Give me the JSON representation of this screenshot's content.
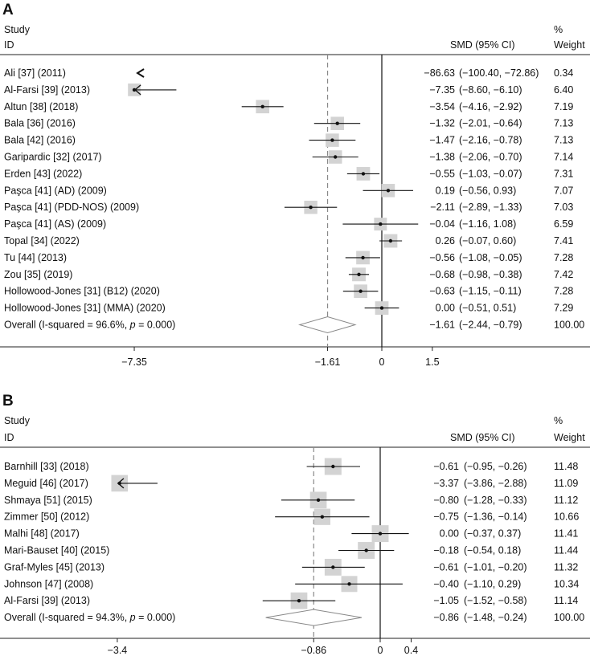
{
  "chart_data": [
    {
      "type": "forest",
      "panel": "A",
      "header": {
        "study": "Study",
        "id": "ID",
        "smd": "SMD (95% CI)",
        "pct": "%",
        "weight": "Weight"
      },
      "xticks": [
        {
          "v": -7.35,
          "label": "−7.35"
        },
        {
          "v": -1.61,
          "label": "−1.61"
        },
        {
          "v": 0,
          "label": "0"
        },
        {
          "v": 1.5,
          "label": "1.5"
        }
      ],
      "xlim": [
        -7.35,
        1.5
      ],
      "pooled": -1.61,
      "rows": [
        {
          "id": "Ali [37] (2011)",
          "est": -86.63,
          "lo": -100.4,
          "hi": -72.86,
          "weight": 0.34,
          "est_txt": "−86.63",
          "ci_txt": "(−100.40, −72.86)",
          "w_txt": "0.34"
        },
        {
          "id": "Al-Farsi [39] (2013)",
          "est": -7.35,
          "lo": -8.6,
          "hi": -6.1,
          "weight": 6.4,
          "est_txt": "−7.35",
          "ci_txt": "(−8.60, −6.10)",
          "w_txt": "6.40"
        },
        {
          "id": "Altun [38] (2018)",
          "est": -3.54,
          "lo": -4.16,
          "hi": -2.92,
          "weight": 7.19,
          "est_txt": "−3.54",
          "ci_txt": "(−4.16, −2.92)",
          "w_txt": "7.19"
        },
        {
          "id": "Bala [36] (2016)",
          "est": -1.32,
          "lo": -2.01,
          "hi": -0.64,
          "weight": 7.13,
          "est_txt": "−1.32",
          "ci_txt": "(−2.01, −0.64)",
          "w_txt": "7.13"
        },
        {
          "id": "Bala [42] (2016)",
          "est": -1.47,
          "lo": -2.16,
          "hi": -0.78,
          "weight": 7.13,
          "est_txt": "−1.47",
          "ci_txt": "(−2.16, −0.78)",
          "w_txt": "7.13"
        },
        {
          "id": "Garipardic [32] (2017)",
          "est": -1.38,
          "lo": -2.06,
          "hi": -0.7,
          "weight": 7.14,
          "est_txt": "−1.38",
          "ci_txt": "(−2.06, −0.70)",
          "w_txt": "7.14"
        },
        {
          "id": "Erden [43] (2022)",
          "est": -0.55,
          "lo": -1.03,
          "hi": -0.07,
          "weight": 7.31,
          "est_txt": "−0.55",
          "ci_txt": "(−1.03, −0.07)",
          "w_txt": "7.31"
        },
        {
          "id": "Paşca [41] (AD) (2009)",
          "est": 0.19,
          "lo": -0.56,
          "hi": 0.93,
          "weight": 7.07,
          "est_txt": "0.19",
          "ci_txt": "(−0.56, 0.93)",
          "w_txt": "7.07"
        },
        {
          "id": "Paşca [41] (PDD-NOS) (2009)",
          "est": -2.11,
          "lo": -2.89,
          "hi": -1.33,
          "weight": 7.03,
          "est_txt": "−2.11",
          "ci_txt": "(−2.89, −1.33)",
          "w_txt": "7.03"
        },
        {
          "id": "Paşca [41] (AS) (2009)",
          "est": -0.04,
          "lo": -1.16,
          "hi": 1.08,
          "weight": 6.59,
          "est_txt": "−0.04",
          "ci_txt": "(−1.16, 1.08)",
          "w_txt": "6.59"
        },
        {
          "id": "Topal [34] (2022)",
          "est": 0.26,
          "lo": -0.07,
          "hi": 0.6,
          "weight": 7.41,
          "est_txt": "0.26",
          "ci_txt": "(−0.07, 0.60)",
          "w_txt": "7.41"
        },
        {
          "id": "Tu [44] (2013)",
          "est": -0.56,
          "lo": -1.08,
          "hi": -0.05,
          "weight": 7.28,
          "est_txt": "−0.56",
          "ci_txt": "(−1.08, −0.05)",
          "w_txt": "7.28"
        },
        {
          "id": "Zou [35] (2019)",
          "est": -0.68,
          "lo": -0.98,
          "hi": -0.38,
          "weight": 7.42,
          "est_txt": "−0.68",
          "ci_txt": "(−0.98, −0.38)",
          "w_txt": "7.42"
        },
        {
          "id": "Hollowood-Jones [31] (B12) (2020)",
          "est": -0.63,
          "lo": -1.15,
          "hi": -0.11,
          "weight": 7.28,
          "est_txt": "−0.63",
          "ci_txt": "(−1.15, −0.11)",
          "w_txt": "7.28"
        },
        {
          "id": "Hollowood-Jones [31] (MMA) (2020)",
          "est": 0.0,
          "lo": -0.51,
          "hi": 0.51,
          "weight": 7.29,
          "est_txt": "0.00",
          "ci_txt": "(−0.51, 0.51)",
          "w_txt": "7.29"
        }
      ],
      "overall": {
        "id_pre": "Overall (I-squared = 96.6%, ",
        "p_label": "p",
        "id_post": " = 0.000)",
        "est": -1.61,
        "lo": -2.44,
        "hi": -0.79,
        "est_txt": "−1.61",
        "ci_txt": "(−2.44, −0.79)",
        "w_txt": "100.00"
      }
    },
    {
      "type": "forest",
      "panel": "B",
      "header": {
        "study": "Study",
        "id": "ID",
        "smd": "SMD (95% CI)",
        "pct": "%",
        "weight": "Weight"
      },
      "xticks": [
        {
          "v": -3.4,
          "label": "−3.4"
        },
        {
          "v": -0.86,
          "label": "−0.86"
        },
        {
          "v": 0,
          "label": "0"
        },
        {
          "v": 0.4,
          "label": "0.4"
        }
      ],
      "xlim": [
        -3.4,
        0.4
      ],
      "pooled": -0.86,
      "rows": [
        {
          "id": "Barnhill [33] (2018)",
          "est": -0.61,
          "lo": -0.95,
          "hi": -0.26,
          "weight": 11.48,
          "est_txt": "−0.61",
          "ci_txt": "(−0.95, −0.26)",
          "w_txt": "11.48"
        },
        {
          "id": "Meguid [46] (2017)",
          "est": -3.37,
          "lo": -3.86,
          "hi": -2.88,
          "weight": 11.09,
          "est_txt": "−3.37",
          "ci_txt": "(−3.86, −2.88)",
          "w_txt": "11.09"
        },
        {
          "id": "Shmaya [51] (2015)",
          "est": -0.8,
          "lo": -1.28,
          "hi": -0.33,
          "weight": 11.12,
          "est_txt": "−0.80",
          "ci_txt": "(−1.28, −0.33)",
          "w_txt": "11.12"
        },
        {
          "id": "Zimmer [50] (2012)",
          "est": -0.75,
          "lo": -1.36,
          "hi": -0.14,
          "weight": 10.66,
          "est_txt": "−0.75",
          "ci_txt": "(−1.36, −0.14)",
          "w_txt": "10.66"
        },
        {
          "id": "Malhi [48] (2017)",
          "est": 0.0,
          "lo": -0.37,
          "hi": 0.37,
          "weight": 11.41,
          "est_txt": "0.00",
          "ci_txt": "(−0.37, 0.37)",
          "w_txt": "11.41"
        },
        {
          "id": "Mari-Bauset [40] (2015)",
          "est": -0.18,
          "lo": -0.54,
          "hi": 0.18,
          "weight": 11.44,
          "est_txt": "−0.18",
          "ci_txt": "(−0.54, 0.18)",
          "w_txt": "11.44"
        },
        {
          "id": "Graf-Myles [45] (2013)",
          "est": -0.61,
          "lo": -1.01,
          "hi": -0.2,
          "weight": 11.32,
          "est_txt": "−0.61",
          "ci_txt": "(−1.01, −0.20)",
          "w_txt": "11.32"
        },
        {
          "id": "Johnson [47] (2008)",
          "est": -0.4,
          "lo": -1.1,
          "hi": 0.29,
          "weight": 10.34,
          "est_txt": "−0.40",
          "ci_txt": "(−1.10, 0.29)",
          "w_txt": "10.34"
        },
        {
          "id": "Al-Farsi [39] (2013)",
          "est": -1.05,
          "lo": -1.52,
          "hi": -0.58,
          "weight": 11.14,
          "est_txt": "−1.05",
          "ci_txt": "(−1.52, −0.58)",
          "w_txt": "11.14"
        }
      ],
      "overall": {
        "id_pre": "Overall (I-squared = 94.3%, ",
        "p_label": "p",
        "id_post": " = 0.000)",
        "est": -0.86,
        "lo": -1.48,
        "hi": -0.24,
        "est_txt": "−0.86",
        "ci_txt": "(−1.48, −0.24)",
        "w_txt": "100.00"
      }
    }
  ]
}
